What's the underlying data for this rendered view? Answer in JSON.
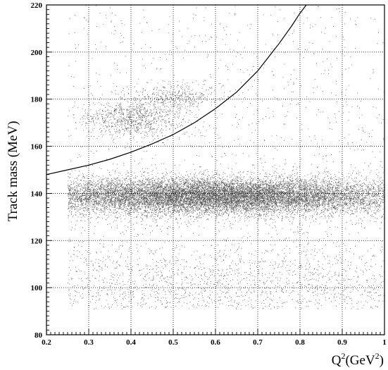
{
  "chart_data": {
    "type": "scatter",
    "title": "",
    "xlabel": {
      "base": "Q",
      "sup1": "2",
      "mid": "(GeV",
      "sup2": "2",
      "end": ")"
    },
    "ylabel": "Track mass (MeV)",
    "xlim": [
      0.2,
      1.0
    ],
    "ylim": [
      80,
      220
    ],
    "x_ticks": [
      0.2,
      0.3,
      0.4,
      0.5,
      0.6,
      0.7,
      0.8,
      0.9,
      1.0
    ],
    "x_tick_labels": [
      "0.2",
      "0.3",
      "0.4",
      "0.5",
      "0.6",
      "0.7",
      "0.8",
      "0.9",
      "1"
    ],
    "y_ticks": [
      80,
      100,
      120,
      140,
      160,
      180,
      200,
      220
    ],
    "y_tick_labels": [
      "80",
      "100",
      "120",
      "140",
      "160",
      "180",
      "200",
      "220"
    ],
    "grid": true,
    "grid_style": "dotted",
    "point_color": "#555555",
    "curve_color": "#000000",
    "cut_curve": {
      "x": [
        0.2,
        0.25,
        0.3,
        0.35,
        0.4,
        0.45,
        0.5,
        0.55,
        0.6,
        0.65,
        0.7,
        0.75,
        0.78,
        0.8,
        0.815
      ],
      "y": [
        148,
        150,
        152,
        154.5,
        157.5,
        161,
        165,
        170,
        176,
        183,
        192,
        203.5,
        211,
        216.5,
        220
      ]
    },
    "clusters": [
      {
        "name": "",
        "x_center": 0.6,
        "x_spread": 0.2,
        "y_center": 139,
        "y_spread": 3.5,
        "count": 9000
      },
      {
        "name": "",
        "x_center": 0.6,
        "x_spread": 0.4,
        "y_center": 139,
        "y_spread": 4.5,
        "count": 7000
      },
      {
        "name": "",
        "x_center": 0.4,
        "x_spread": 0.06,
        "y_center": 172,
        "y_spread": 4,
        "count": 900
      },
      {
        "name": "",
        "x_center": 0.5,
        "x_spread": 0.05,
        "y_center": 181,
        "y_spread": 3,
        "count": 400
      },
      {
        "name": "",
        "x_center": 0.6,
        "x_spread": 0.4,
        "y_center": 100,
        "y_spread": 10,
        "count": 2600
      },
      {
        "name": "",
        "x_center": 0.6,
        "x_spread": 0.4,
        "y_center": 150,
        "y_spread": 70,
        "count": 3200
      }
    ]
  }
}
